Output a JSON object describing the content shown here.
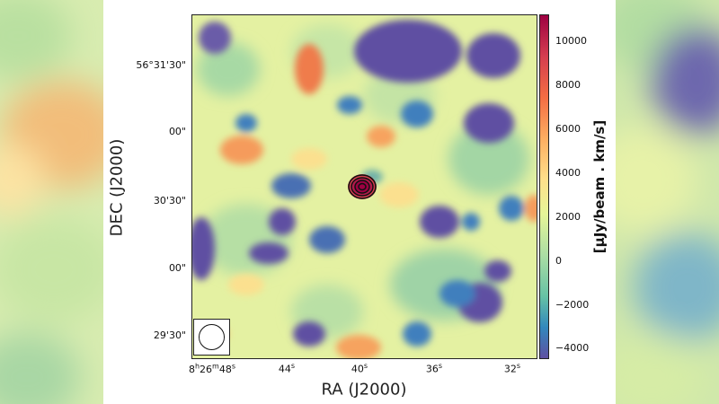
{
  "figure": {
    "ylabel": "DEC (J2000)",
    "xlabel": "RA (J2000)",
    "colorbar_label": "[μJy/beam . km/s]",
    "yticks": [
      "56°31'30\"",
      "00\"",
      "30'30\"",
      "00\"",
      "29'30\""
    ],
    "xticks": [
      "8h26m48s",
      "44s",
      "40s",
      "36s",
      "32s"
    ],
    "colorbar_ticks": [
      "10000",
      "8000",
      "6000",
      "4000",
      "2000",
      "0",
      "−2000",
      "−4000"
    ],
    "colormap": "Spectral_r",
    "colors": {
      "low": "#5e4fa2",
      "mid_low": "#3288bd",
      "mid": "#e6f598",
      "mid_high": "#fdae61",
      "high": "#9e0142",
      "contour": "#111111"
    }
  },
  "chart_data": {
    "type": "heatmap",
    "xlabel": "RA (J2000)",
    "ylabel": "DEC (J2000)",
    "colorbar_label": "[μJy/beam . km/s]",
    "colorbar_range": [
      -4500,
      11200
    ],
    "colorbar_ticks": [
      -4000,
      -2000,
      0,
      2000,
      4000,
      6000,
      8000,
      10000
    ],
    "source": {
      "peak_value_approx": 11000,
      "contours": "black concentric",
      "location": "RA ≈ 8h26m40s"
    },
    "beam_shown": true
  }
}
